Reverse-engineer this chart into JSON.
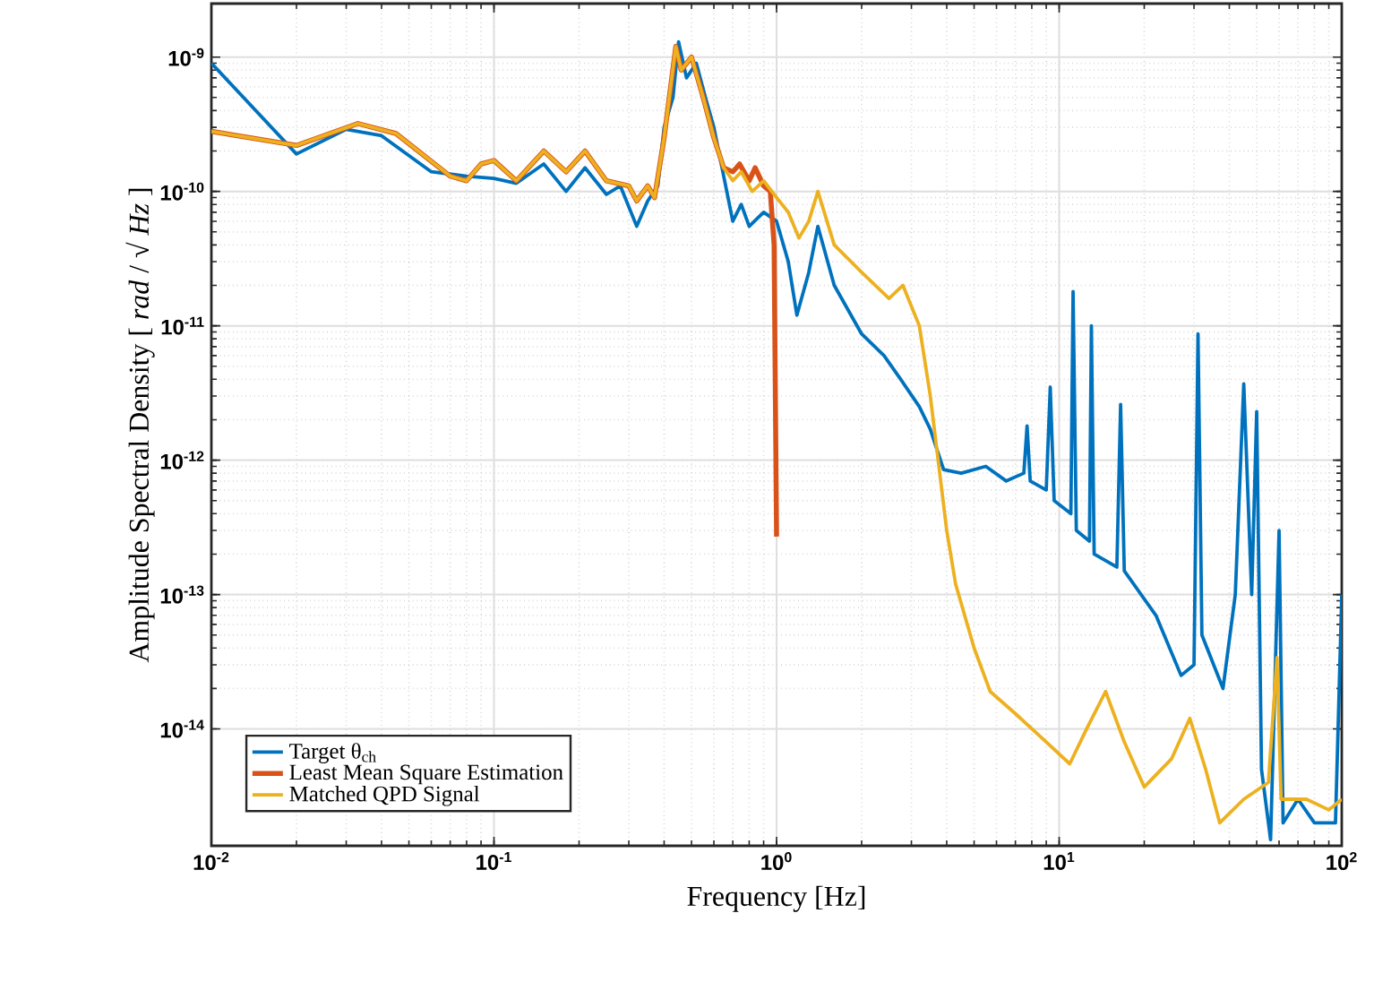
{
  "chart_data": {
    "type": "line",
    "xlabel": "Frequency [Hz]",
    "ylabel": "Amplitude Spectral Density [ *rad* / √ *Hz* ]",
    "log": "xy",
    "grid": true,
    "legend": "bottom left",
    "line_style": "solid",
    "marker": "none",
    "xlim": [
      0.01,
      100
    ],
    "ylim": [
      1.35e-15,
      2.5e-09
    ],
    "xticks": [
      {
        "value": 0.01,
        "label": "10$^{-2}$"
      },
      {
        "value": 0.1,
        "label": "10$^{-1}$"
      },
      {
        "value": 1,
        "label": "10$^{0}$"
      },
      {
        "value": 10,
        "label": "10$^{1}$"
      },
      {
        "value": 100,
        "label": "10$^{2}$"
      }
    ],
    "yticks": [
      {
        "value": 1e-14,
        "label": "10$^{-14}$"
      },
      {
        "value": 1e-13,
        "label": "10$^{-13}$"
      },
      {
        "value": 1e-12,
        "label": "10$^{-12}$"
      },
      {
        "value": 1e-11,
        "label": "10$^{-11}$"
      },
      {
        "value": 1e-10,
        "label": "10$^{-10}$"
      },
      {
        "value": 1e-09,
        "label": "10$^{-9}$"
      }
    ],
    "series": [
      {
        "name": "Target θ$_{ch}$",
        "color": "#0072bd",
        "x": [
          0.01,
          0.02,
          0.03,
          0.04,
          0.06,
          0.08,
          0.1,
          0.12,
          0.15,
          0.18,
          0.21,
          0.25,
          0.28,
          0.32,
          0.35,
          0.38,
          0.4,
          0.43,
          0.45,
          0.48,
          0.52,
          0.56,
          0.6,
          0.65,
          0.7,
          0.75,
          0.8,
          0.9,
          1.0,
          1.1,
          1.18,
          1.3,
          1.4,
          1.6,
          2.0,
          2.4,
          2.75,
          3.2,
          3.5,
          3.9,
          4.5,
          5.5,
          6.5,
          7.5,
          7.7,
          7.9,
          9.0,
          9.3,
          9.6,
          11.0,
          11.2,
          11.5,
          12.8,
          13.0,
          13.3,
          16.0,
          16.5,
          17,
          22,
          27,
          30,
          31,
          32,
          38,
          42,
          45,
          48,
          50,
          52,
          56,
          60,
          62,
          70,
          80,
          95,
          100
        ],
        "values": [
          9e-10,
          1.9e-10,
          2.9e-10,
          2.6e-10,
          1.4e-10,
          1.3e-10,
          1.25e-10,
          1.15e-10,
          1.6e-10,
          1e-10,
          1.5e-10,
          9.5e-11,
          1.1e-10,
          5.5e-11,
          8.5e-11,
          1.1e-10,
          3e-10,
          5e-10,
          1.3e-09,
          7e-10,
          9e-10,
          5e-10,
          3e-10,
          1.3e-10,
          6e-11,
          8e-11,
          5.5e-11,
          7e-11,
          6e-11,
          3e-11,
          1.2e-11,
          2.5e-11,
          5.5e-11,
          2e-11,
          8.7e-12,
          6e-12,
          4e-12,
          2.5e-12,
          1.7e-12,
          8.5e-13,
          8e-13,
          9e-13,
          7e-13,
          8e-13,
          1.8e-12,
          7e-13,
          6e-13,
          3.5e-12,
          5e-13,
          4e-13,
          1.8e-11,
          3e-13,
          2.5e-13,
          1e-11,
          2e-13,
          1.6e-13,
          2.6e-12,
          1.5e-13,
          7e-14,
          2.5e-14,
          3e-14,
          8.7e-12,
          5e-14,
          2e-14,
          1e-13,
          3.7e-12,
          1e-13,
          2.3e-12,
          5e-15,
          1.5e-15,
          3e-13,
          2e-15,
          3e-15,
          2e-15,
          2e-15,
          1e-13
        ]
      },
      {
        "name": "Least Mean Square Estimation",
        "color": "#d95319",
        "x": [
          0.01,
          0.02,
          0.033,
          0.045,
          0.07,
          0.08,
          0.09,
          0.1,
          0.12,
          0.15,
          0.18,
          0.21,
          0.25,
          0.3,
          0.32,
          0.35,
          0.37,
          0.4,
          0.44,
          0.46,
          0.5,
          0.55,
          0.6,
          0.65,
          0.7,
          0.74,
          0.8,
          0.84,
          0.9,
          0.95,
          0.98,
          1.0
        ],
        "values": [
          2.8e-10,
          2.2e-10,
          3.2e-10,
          2.7e-10,
          1.3e-10,
          1.2e-10,
          1.6e-10,
          1.7e-10,
          1.2e-10,
          2e-10,
          1.4e-10,
          2e-10,
          1.2e-10,
          1.1e-10,
          8.5e-11,
          1.1e-10,
          9e-11,
          2.5e-10,
          1.2e-09,
          8e-10,
          1e-09,
          5e-10,
          2.5e-10,
          1.5e-10,
          1.4e-10,
          1.6e-10,
          1.2e-10,
          1.5e-10,
          1.1e-10,
          1e-10,
          4e-11,
          2.7e-13
        ]
      },
      {
        "name": "Matched QPD Signal",
        "color": "#edb120",
        "x": [
          0.01,
          0.02,
          0.033,
          0.045,
          0.07,
          0.08,
          0.09,
          0.1,
          0.12,
          0.15,
          0.18,
          0.21,
          0.25,
          0.3,
          0.32,
          0.35,
          0.37,
          0.4,
          0.44,
          0.46,
          0.5,
          0.55,
          0.6,
          0.65,
          0.7,
          0.75,
          0.82,
          0.9,
          1.0,
          1.1,
          1.2,
          1.3,
          1.4,
          1.6,
          2.0,
          2.5,
          2.8,
          3.2,
          3.5,
          4.0,
          4.3,
          5.0,
          5.7,
          7.0,
          9.0,
          10.9,
          12.5,
          14.6,
          17,
          20,
          25,
          29,
          33,
          37,
          45,
          55,
          59,
          61,
          75,
          90,
          100
        ],
        "values": [
          2.8e-10,
          2.2e-10,
          3.2e-10,
          2.7e-10,
          1.3e-10,
          1.2e-10,
          1.6e-10,
          1.7e-10,
          1.2e-10,
          2e-10,
          1.4e-10,
          2e-10,
          1.2e-10,
          1.1e-10,
          8.5e-11,
          1.1e-10,
          9e-11,
          2.5e-10,
          1.2e-09,
          8e-10,
          1e-09,
          5e-10,
          2.5e-10,
          1.5e-10,
          1.2e-10,
          1.4e-10,
          1e-10,
          1.2e-10,
          9e-11,
          7e-11,
          4.5e-11,
          6e-11,
          1e-10,
          4e-11,
          2.5e-11,
          1.6e-11,
          2e-11,
          1e-11,
          3e-12,
          3e-13,
          1.2e-13,
          4e-14,
          1.9e-14,
          1.3e-14,
          8e-15,
          5.5e-15,
          1e-14,
          1.9e-14,
          8e-15,
          3.7e-15,
          6e-15,
          1.2e-14,
          5e-15,
          2e-15,
          3e-15,
          4e-15,
          3.4e-14,
          3e-15,
          3e-15,
          2.5e-15,
          3e-15
        ]
      }
    ]
  }
}
